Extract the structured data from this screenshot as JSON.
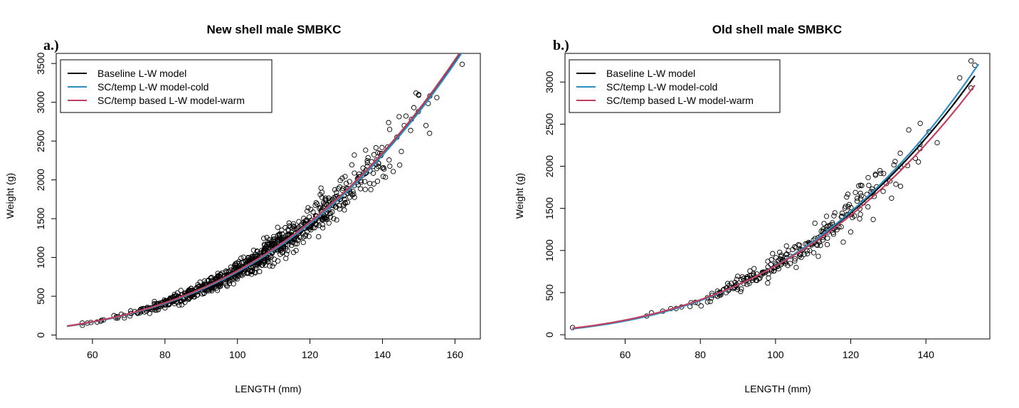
{
  "figure": {
    "colors": {
      "baseline": "#000000",
      "cold": "#2e8fc0",
      "warm": "#c2405f",
      "points": "#000000"
    }
  },
  "chart_data": [
    {
      "type": "scatter",
      "panel_tag": "a.)",
      "title": "New shell male SMBKC",
      "xlabel": "LENGTH (mm)",
      "ylabel": "Weight (g)",
      "xlim": [
        50,
        167
      ],
      "ylim": [
        -50,
        3630
      ],
      "xticks": [
        60,
        80,
        100,
        120,
        140,
        160
      ],
      "yticks": [
        0,
        500,
        1000,
        1500,
        2000,
        2500,
        3000,
        3500
      ],
      "grid": false,
      "legend_position": "top-left",
      "legend": [
        {
          "label": "Baseline L-W model",
          "series": "baseline"
        },
        {
          "label": "SC/temp L-W model-cold",
          "series": "cold"
        },
        {
          "label": "SC/temp based L-W model-warm",
          "series": "warm"
        }
      ],
      "curves": [
        {
          "series": "baseline",
          "a": 0.000519,
          "b": 3.1,
          "x_range": [
            53,
            162
          ]
        },
        {
          "series": "cold",
          "a": 0.000495,
          "b": 3.108,
          "x_range": [
            53,
            162
          ]
        },
        {
          "series": "warm",
          "a": 0.000543,
          "b": 3.092,
          "x_range": [
            53,
            162
          ]
        }
      ],
      "points": {
        "n": 900,
        "x_range": [
          53,
          157
        ],
        "spread_fraction": 0.075,
        "seed": 11,
        "extra": [
          [
            150,
            3100
          ],
          [
            150,
            3090
          ],
          [
            155,
            3060
          ],
          [
            152,
            2700
          ],
          [
            162,
            3490
          ],
          [
            144,
            2550
          ],
          [
            146,
            2700
          ],
          [
            148,
            2780
          ],
          [
            142,
            2650
          ],
          [
            153,
            2600
          ]
        ]
      }
    },
    {
      "type": "scatter",
      "panel_tag": "b.)",
      "title": "Old shell male SMBKC",
      "xlabel": "LENGTH (mm)",
      "ylabel": "Weight (g)",
      "xlim": [
        44,
        157
      ],
      "ylim": [
        -50,
        3340
      ],
      "xticks": [
        60,
        80,
        100,
        120,
        140
      ],
      "yticks": [
        0,
        500,
        1000,
        1500,
        2000,
        2500,
        3000
      ],
      "grid": false,
      "legend_position": "top-left",
      "legend": [
        {
          "label": "Baseline L-W model",
          "series": "baseline"
        },
        {
          "label": "SC/temp L-W model-cold",
          "series": "cold"
        },
        {
          "label": "SC/temp based L-W model-warm",
          "series": "warm"
        }
      ],
      "curves": [
        {
          "series": "baseline",
          "a": 0.000519,
          "b": 3.1,
          "x_range": [
            46,
            153
          ]
        },
        {
          "series": "cold",
          "a": 0.000393,
          "b": 3.16,
          "x_range": [
            46,
            154
          ]
        },
        {
          "series": "warm",
          "a": 0.000711,
          "b": 3.03,
          "x_range": [
            46,
            153
          ]
        }
      ],
      "points": {
        "n": 260,
        "x_range": [
          62,
          150
        ],
        "spread_fraction": 0.07,
        "seed": 23,
        "extra": [
          [
            46,
            85
          ],
          [
            67,
            260
          ],
          [
            70,
            280
          ],
          [
            75,
            330
          ],
          [
            152,
            3250
          ],
          [
            153,
            3200
          ],
          [
            152,
            2930
          ],
          [
            149,
            3050
          ],
          [
            120,
            1220
          ],
          [
            118,
            1100
          ],
          [
            143,
            2280
          ]
        ]
      }
    }
  ]
}
